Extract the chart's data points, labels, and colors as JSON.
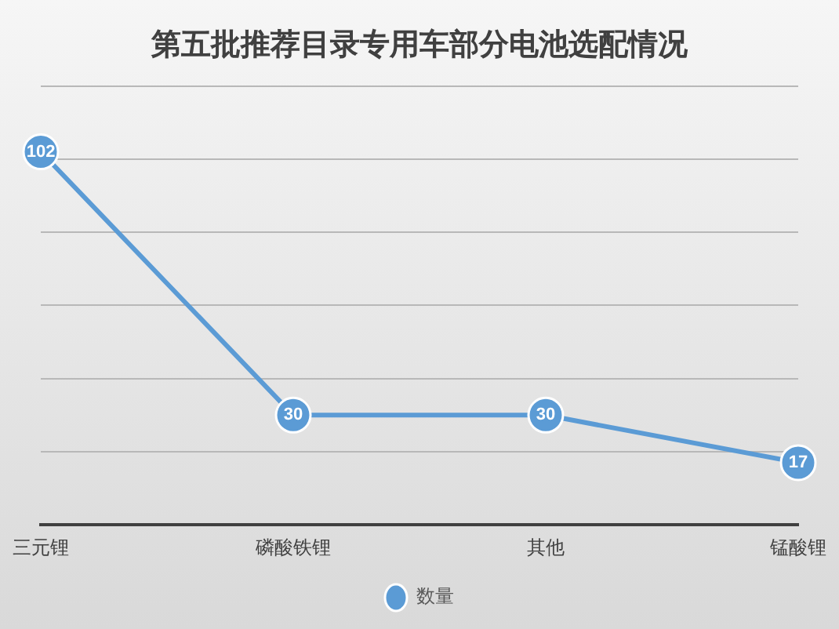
{
  "chart_data": {
    "type": "line",
    "title": "第五批推荐目录专用车部分电池选配情况",
    "categories": [
      "三元锂",
      "磷酸铁锂",
      "其他",
      "锰酸锂"
    ],
    "series": [
      {
        "name": "数量",
        "color": "#5b9bd5",
        "values": [
          102,
          30,
          30,
          17
        ]
      }
    ],
    "ylim": [
      0,
      120
    ],
    "yticks": [
      0,
      20,
      40,
      60,
      80,
      100,
      120
    ],
    "tick_labels": "x",
    "grid": "y",
    "legend": "bottom",
    "marker": "circle",
    "data_labels": true
  }
}
